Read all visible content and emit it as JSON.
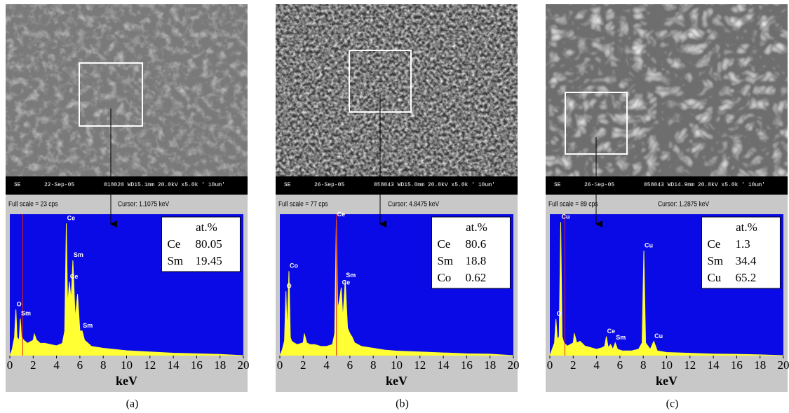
{
  "chart_data": [
    {
      "type": "area",
      "caption": "(a)",
      "xlabel": "keV",
      "sem_info": [
        "SE",
        "22-Sep-05",
        "018020 WD15.1mm 20.0kV x5.0k ' 10um'"
      ],
      "full_scale_label": "Full scale = 23 cps",
      "cursor_label": "Cursor: 1.1075 keV",
      "cursor": 1.1075,
      "x": [
        0,
        0.2,
        0.4,
        0.52,
        0.62,
        0.8,
        0.9,
        1.0,
        1.2,
        1.5,
        2.0,
        2.1,
        2.3,
        2.6,
        3.0,
        3.5,
        4.0,
        4.5,
        4.7,
        4.84,
        4.95,
        5.1,
        5.25,
        5.4,
        5.6,
        5.8,
        6.0,
        6.2,
        6.4,
        7,
        8,
        9,
        10,
        12,
        14,
        16,
        18,
        20
      ],
      "values": [
        0,
        1,
        3,
        7.5,
        3,
        2.5,
        6,
        3,
        2.5,
        2,
        2.5,
        3.5,
        2.5,
        2,
        2,
        1.8,
        1.6,
        2,
        4,
        21.5,
        8,
        12,
        9,
        15.5,
        6,
        10,
        4,
        4,
        2.5,
        1.5,
        1.2,
        1,
        0.8,
        0.6,
        0.4,
        0.3,
        0.2,
        0
      ],
      "color": "#ffff33",
      "background": "#0a0ae6",
      "xlim": [
        0,
        20
      ],
      "xticks": [
        0,
        2,
        4,
        6,
        8,
        10,
        12,
        14,
        16,
        18,
        20
      ],
      "ylim": [
        0,
        23
      ],
      "peak_labels": [
        {
          "text": "O",
          "x": 0.52
        },
        {
          "text": "Sm",
          "x": 0.9
        },
        {
          "text": "Ce",
          "x": 4.84
        },
        {
          "text": "Ce",
          "x": 5.1
        },
        {
          "text": "Sm",
          "x": 5.4
        },
        {
          "text": "Sm",
          "x": 6.2
        }
      ],
      "composition": {
        "header": "at.%",
        "elements": [
          "Ce",
          "Sm"
        ],
        "values": [
          80.05,
          19.45
        ]
      }
    },
    {
      "type": "area",
      "caption": "(b)",
      "xlabel": "keV",
      "sem_info": [
        "SE",
        "26-Sep-05",
        "058043 WD15.0mm 20.0kV x5.0k ' 10um'"
      ],
      "full_scale_label": "Full scale = 77 cps",
      "cursor_label": "Cursor: 4.8475 keV",
      "cursor": 4.8475,
      "x": [
        0,
        0.2,
        0.4,
        0.52,
        0.62,
        0.78,
        0.9,
        1.0,
        1.2,
        1.5,
        2.0,
        2.1,
        2.3,
        2.6,
        3.0,
        3.5,
        4.0,
        4.5,
        4.7,
        4.84,
        4.95,
        5.1,
        5.26,
        5.4,
        5.6,
        5.8,
        6.0,
        6.2,
        6.4,
        7,
        8,
        9,
        10,
        12,
        14,
        16,
        18,
        20
      ],
      "values": [
        0,
        3,
        8,
        35,
        12,
        46,
        10,
        8,
        7,
        6,
        7,
        12,
        7,
        6,
        6,
        5,
        5,
        6,
        12,
        74,
        25,
        30,
        37,
        20,
        41,
        15,
        12,
        10,
        7,
        5,
        4,
        3,
        2.5,
        2,
        1.5,
        1,
        0.8,
        0
      ],
      "color": "#ffff33",
      "background": "#0a0ae6",
      "xlim": [
        0,
        20
      ],
      "xticks": [
        0,
        2,
        4,
        6,
        8,
        10,
        12,
        14,
        16,
        18,
        20
      ],
      "ylim": [
        0,
        77
      ],
      "peak_labels": [
        {
          "text": "O",
          "x": 0.52
        },
        {
          "text": "Co",
          "x": 0.78
        },
        {
          "text": "Ce",
          "x": 4.84
        },
        {
          "text": "Ce",
          "x": 5.26
        },
        {
          "text": "Sm",
          "x": 5.6
        }
      ],
      "composition": {
        "header": "at.%",
        "elements": [
          "Ce",
          "Sm",
          "Co"
        ],
        "values": [
          80.6,
          18.8,
          0.62
        ]
      }
    },
    {
      "type": "area",
      "caption": "(c)",
      "xlabel": "keV",
      "sem_info": [
        "SE",
        "26-Sep-05",
        "058043 WD14.9mm 20.0kV x5.0k ' 10um'"
      ],
      "full_scale_label": "Full scale = 89 cps",
      "cursor_label": "Cursor: 1.2875 keV",
      "cursor": 1.2875,
      "x": [
        0,
        0.2,
        0.4,
        0.52,
        0.65,
        0.8,
        0.93,
        1.05,
        1.2,
        1.5,
        2.0,
        2.1,
        2.3,
        2.6,
        3.0,
        3.5,
        4.0,
        4.5,
        4.7,
        4.84,
        5.0,
        5.2,
        5.4,
        5.6,
        5.8,
        6.2,
        7.0,
        7.6,
        7.9,
        8.05,
        8.2,
        8.6,
        8.9,
        9.2,
        10,
        12,
        14,
        16,
        18,
        20
      ],
      "values": [
        0,
        4,
        8,
        23,
        10,
        12,
        84,
        12,
        8,
        6,
        8,
        14,
        8,
        9,
        6,
        5,
        4,
        5,
        6,
        12,
        5,
        7,
        4,
        8,
        4,
        3,
        3,
        4,
        8,
        66,
        8,
        4,
        9,
        3,
        2,
        1.5,
        1,
        0.8,
        0.5,
        0
      ],
      "color": "#ffff33",
      "background": "#0a0ae6",
      "xlim": [
        0,
        20
      ],
      "xticks": [
        0,
        2,
        4,
        6,
        8,
        10,
        12,
        14,
        16,
        18,
        20
      ],
      "ylim": [
        0,
        89
      ],
      "peak_labels": [
        {
          "text": "O",
          "x": 0.52
        },
        {
          "text": "Cu",
          "x": 0.93
        },
        {
          "text": "Ce",
          "x": 4.84
        },
        {
          "text": "Sm",
          "x": 5.6
        },
        {
          "text": "Cu",
          "x": 8.05
        },
        {
          "text": "Cu",
          "x": 8.9
        }
      ],
      "composition": {
        "header": "at.%",
        "elements": [
          "Ce",
          "Sm",
          "Cu"
        ],
        "values": [
          1.3,
          34.4,
          65.2
        ]
      }
    }
  ]
}
